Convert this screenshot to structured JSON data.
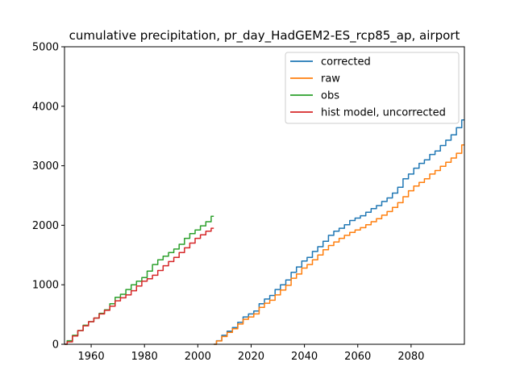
{
  "chart_data": {
    "type": "line",
    "title": "cumulative precipitation, pr_day_HadGEM2-ES_rcp85_ap, airport",
    "xlabel": "",
    "ylabel": "",
    "xlim": [
      1950,
      2100
    ],
    "ylim": [
      0,
      5000
    ],
    "x_ticks": [
      1960,
      1980,
      2000,
      2020,
      2040,
      2060,
      2080
    ],
    "y_ticks": [
      0,
      1000,
      2000,
      3000,
      4000,
      5000
    ],
    "grid": false,
    "legend_position": "top-right",
    "series": [
      {
        "name": "corrected",
        "color": "#1f77b4",
        "x": [
          2006,
          2008,
          2010,
          2012,
          2014,
          2016,
          2018,
          2020,
          2022,
          2024,
          2026,
          2028,
          2030,
          2032,
          2034,
          2036,
          2038,
          2040,
          2042,
          2044,
          2046,
          2048,
          2050,
          2052,
          2054,
          2056,
          2058,
          2060,
          2062,
          2064,
          2066,
          2068,
          2070,
          2072,
          2074,
          2076,
          2078,
          2080,
          2082,
          2084,
          2086,
          2088,
          2090,
          2092,
          2094,
          2096,
          2098,
          2100
        ],
        "y": [
          0,
          60,
          150,
          220,
          280,
          370,
          460,
          510,
          560,
          680,
          760,
          820,
          920,
          1000,
          1080,
          1210,
          1300,
          1400,
          1460,
          1560,
          1640,
          1730,
          1830,
          1900,
          1950,
          2010,
          2080,
          2120,
          2160,
          2220,
          2280,
          2330,
          2400,
          2460,
          2540,
          2640,
          2780,
          2860,
          2960,
          3040,
          3100,
          3190,
          3250,
          3340,
          3430,
          3520,
          3640,
          3770
        ]
      },
      {
        "name": "raw",
        "color": "#ff7f0e",
        "x": [
          2006,
          2008,
          2010,
          2012,
          2014,
          2016,
          2018,
          2020,
          2022,
          2024,
          2026,
          2028,
          2030,
          2032,
          2034,
          2036,
          2038,
          2040,
          2042,
          2044,
          2046,
          2048,
          2050,
          2052,
          2054,
          2056,
          2058,
          2060,
          2062,
          2064,
          2066,
          2068,
          2070,
          2072,
          2074,
          2076,
          2078,
          2080,
          2082,
          2084,
          2086,
          2088,
          2090,
          2092,
          2094,
          2096,
          2098,
          2100
        ],
        "y": [
          0,
          55,
          130,
          200,
          260,
          340,
          420,
          460,
          510,
          620,
          690,
          740,
          830,
          910,
          990,
          1110,
          1180,
          1280,
          1340,
          1420,
          1500,
          1590,
          1660,
          1720,
          1780,
          1830,
          1880,
          1920,
          1960,
          2010,
          2060,
          2110,
          2170,
          2230,
          2300,
          2380,
          2480,
          2580,
          2660,
          2720,
          2780,
          2860,
          2920,
          2990,
          3060,
          3130,
          3210,
          3350
        ]
      },
      {
        "name": "obs",
        "color": "#2ca02c",
        "x": [
          1950,
          1952,
          1954,
          1956,
          1958,
          1960,
          1962,
          1964,
          1966,
          1968,
          1970,
          1972,
          1974,
          1976,
          1978,
          1980,
          1982,
          1984,
          1986,
          1988,
          1990,
          1992,
          1994,
          1996,
          1998,
          2000,
          2002,
          2004,
          2006
        ],
        "y": [
          0,
          60,
          150,
          230,
          320,
          380,
          440,
          520,
          580,
          680,
          790,
          840,
          920,
          1000,
          1060,
          1120,
          1230,
          1340,
          1420,
          1480,
          1540,
          1600,
          1680,
          1780,
          1860,
          1920,
          1990,
          2060,
          2150
        ]
      },
      {
        "name": "hist model, uncorrected",
        "color": "#d62728",
        "x": [
          1950,
          1952,
          1954,
          1956,
          1958,
          1960,
          1962,
          1964,
          1966,
          1968,
          1970,
          1972,
          1974,
          1976,
          1978,
          1980,
          1982,
          1984,
          1986,
          1988,
          1990,
          1992,
          1994,
          1996,
          1998,
          2000,
          2002,
          2004,
          2006
        ],
        "y": [
          0,
          40,
          140,
          230,
          310,
          380,
          440,
          510,
          570,
          640,
          730,
          780,
          830,
          900,
          980,
          1060,
          1100,
          1160,
          1240,
          1320,
          1390,
          1460,
          1540,
          1620,
          1700,
          1780,
          1840,
          1900,
          1950
        ]
      }
    ]
  }
}
